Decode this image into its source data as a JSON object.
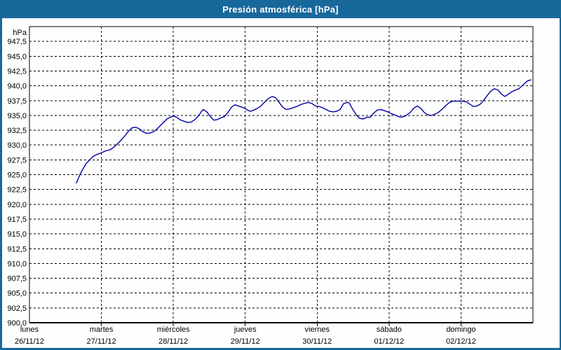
{
  "window": {
    "title": "Presión atmosférica [hPa]"
  },
  "colors": {
    "frame_blue": "#19689c",
    "title_text": "#ffffff",
    "background": "#fdfefd",
    "grid": "#000000",
    "line": "#0000a8",
    "text": "#000000"
  },
  "chart_data": {
    "type": "line",
    "title": "Presión atmosférica [hPa]",
    "legend": "none",
    "grid": "dashed-black",
    "y_axis": {
      "unit_label": "hPa",
      "min": 900,
      "max": 950,
      "tick_step": 2.5,
      "decimal_separator": ",",
      "ticks": [
        {
          "label": "hPa",
          "value": 950
        },
        {
          "label": "947,5",
          "value": 947.5
        },
        {
          "label": "945,0",
          "value": 945
        },
        {
          "label": "942,5",
          "value": 942.5
        },
        {
          "label": "940,0",
          "value": 940
        },
        {
          "label": "937,5",
          "value": 937.5
        },
        {
          "label": "935,0",
          "value": 935
        },
        {
          "label": "932,5",
          "value": 932.5
        },
        {
          "label": "930,0",
          "value": 930
        },
        {
          "label": "927,5",
          "value": 927.5
        },
        {
          "label": "925,0",
          "value": 925
        },
        {
          "label": "922,5",
          "value": 922.5
        },
        {
          "label": "920,0",
          "value": 920
        },
        {
          "label": "917,5",
          "value": 917.5
        },
        {
          "label": "915,0",
          "value": 915
        },
        {
          "label": "912,5",
          "value": 912.5
        },
        {
          "label": "910,0",
          "value": 910
        },
        {
          "label": "907,5",
          "value": 907.5
        },
        {
          "label": "905,0",
          "value": 905
        },
        {
          "label": "902,5",
          "value": 902.5
        },
        {
          "label": "900,0",
          "value": 900
        }
      ]
    },
    "x_axis": {
      "span_days": 7,
      "days": [
        {
          "name": "lunes",
          "date": "26/11/12"
        },
        {
          "name": "martes",
          "date": "27/11/12"
        },
        {
          "name": "miércoles",
          "date": "28/11/12"
        },
        {
          "name": "jueves",
          "date": "29/11/12"
        },
        {
          "name": "viernes",
          "date": "30/11/12"
        },
        {
          "name": "sábado",
          "date": "01/12/12"
        },
        {
          "name": "domingo",
          "date": "02/12/12"
        }
      ]
    },
    "series": [
      {
        "name": "Presión atmosférica",
        "color": "#0000a8",
        "points": [
          [
            0.653,
            923.6
          ],
          [
            0.702,
            925.0
          ],
          [
            0.741,
            925.9
          ],
          [
            0.79,
            926.9
          ],
          [
            0.838,
            927.5
          ],
          [
            0.887,
            928.1
          ],
          [
            0.936,
            928.4
          ],
          [
            0.985,
            928.6
          ],
          [
            1.053,
            929.0
          ],
          [
            1.121,
            929.2
          ],
          [
            1.18,
            929.7
          ],
          [
            1.248,
            930.5
          ],
          [
            1.316,
            931.4
          ],
          [
            1.375,
            932.3
          ],
          [
            1.423,
            932.9
          ],
          [
            1.472,
            933.0
          ],
          [
            1.521,
            932.8
          ],
          [
            1.57,
            932.3
          ],
          [
            1.618,
            932.0
          ],
          [
            1.667,
            932.0
          ],
          [
            1.716,
            932.2
          ],
          [
            1.765,
            932.6
          ],
          [
            1.813,
            933.2
          ],
          [
            1.862,
            933.8
          ],
          [
            1.911,
            934.4
          ],
          [
            1.96,
            934.7
          ],
          [
            2.008,
            934.9
          ],
          [
            2.057,
            934.6
          ],
          [
            2.106,
            934.2
          ],
          [
            2.155,
            934.0
          ],
          [
            2.203,
            933.8
          ],
          [
            2.252,
            933.9
          ],
          [
            2.301,
            934.3
          ],
          [
            2.35,
            934.9
          ],
          [
            2.398,
            935.8
          ],
          [
            2.418,
            936.0
          ],
          [
            2.467,
            935.6
          ],
          [
            2.515,
            934.8
          ],
          [
            2.564,
            934.2
          ],
          [
            2.613,
            934.3
          ],
          [
            2.662,
            934.6
          ],
          [
            2.71,
            934.8
          ],
          [
            2.759,
            935.5
          ],
          [
            2.808,
            936.4
          ],
          [
            2.857,
            936.8
          ],
          [
            2.905,
            936.6
          ],
          [
            2.954,
            936.4
          ],
          [
            2.993,
            936.2
          ],
          [
            3.032,
            935.9
          ],
          [
            3.071,
            935.7
          ],
          [
            3.12,
            935.9
          ],
          [
            3.169,
            936.2
          ],
          [
            3.217,
            936.6
          ],
          [
            3.266,
            937.2
          ],
          [
            3.315,
            937.8
          ],
          [
            3.373,
            938.2
          ],
          [
            3.422,
            938.0
          ],
          [
            3.471,
            937.2
          ],
          [
            3.52,
            936.4
          ],
          [
            3.568,
            936.0
          ],
          [
            3.617,
            936.1
          ],
          [
            3.666,
            936.3
          ],
          [
            3.715,
            936.5
          ],
          [
            3.763,
            936.8
          ],
          [
            3.812,
            937.0
          ],
          [
            3.88,
            937.2
          ],
          [
            3.929,
            937.0
          ],
          [
            3.978,
            936.6
          ],
          [
            4.027,
            936.5
          ],
          [
            4.075,
            936.3
          ],
          [
            4.124,
            936.0
          ],
          [
            4.173,
            935.7
          ],
          [
            4.222,
            935.6
          ],
          [
            4.27,
            935.7
          ],
          [
            4.319,
            936.0
          ],
          [
            4.368,
            937.0
          ],
          [
            4.417,
            937.2
          ],
          [
            4.446,
            937.1
          ],
          [
            4.495,
            936.0
          ],
          [
            4.544,
            935.1
          ],
          [
            4.592,
            934.5
          ],
          [
            4.641,
            934.4
          ],
          [
            4.69,
            934.7
          ],
          [
            4.739,
            934.7
          ],
          [
            4.787,
            935.4
          ],
          [
            4.836,
            935.9
          ],
          [
            4.885,
            936.0
          ],
          [
            4.934,
            935.8
          ],
          [
            4.982,
            935.6
          ],
          [
            5.031,
            935.3
          ],
          [
            5.08,
            935.1
          ],
          [
            5.129,
            934.8
          ],
          [
            5.177,
            934.7
          ],
          [
            5.226,
            934.9
          ],
          [
            5.294,
            935.5
          ],
          [
            5.343,
            936.2
          ],
          [
            5.392,
            936.6
          ],
          [
            5.44,
            936.2
          ],
          [
            5.489,
            935.5
          ],
          [
            5.538,
            935.1
          ],
          [
            5.587,
            935.0
          ],
          [
            5.635,
            935.2
          ],
          [
            5.684,
            935.5
          ],
          [
            5.733,
            936.0
          ],
          [
            5.782,
            936.6
          ],
          [
            5.83,
            937.1
          ],
          [
            5.879,
            937.4
          ],
          [
            5.928,
            937.4
          ],
          [
            5.977,
            937.4
          ],
          [
            6.025,
            937.4
          ],
          [
            6.074,
            937.3
          ],
          [
            6.123,
            936.9
          ],
          [
            6.172,
            936.5
          ],
          [
            6.22,
            936.6
          ],
          [
            6.269,
            936.9
          ],
          [
            6.318,
            937.6
          ],
          [
            6.367,
            938.4
          ],
          [
            6.415,
            939.1
          ],
          [
            6.464,
            939.5
          ],
          [
            6.513,
            939.3
          ],
          [
            6.562,
            938.6
          ],
          [
            6.61,
            938.2
          ],
          [
            6.659,
            938.6
          ],
          [
            6.708,
            939.0
          ],
          [
            6.757,
            939.3
          ],
          [
            6.805,
            939.5
          ],
          [
            6.874,
            940.3
          ],
          [
            6.922,
            940.8
          ],
          [
            6.971,
            941.0
          ]
        ]
      }
    ]
  }
}
